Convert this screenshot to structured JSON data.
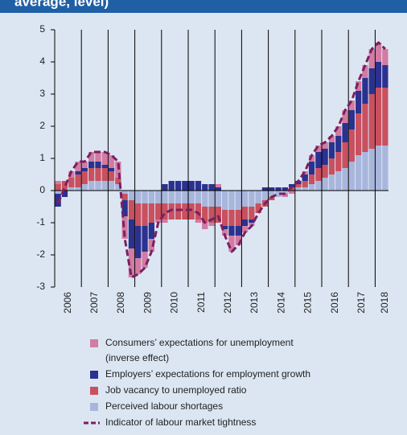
{
  "header": {
    "title": "average, level)"
  },
  "chart_data": {
    "type": "bar",
    "categories": [
      "2006",
      null,
      null,
      null,
      "2007",
      null,
      null,
      null,
      "2008",
      null,
      null,
      null,
      "2009",
      null,
      null,
      null,
      "2010",
      null,
      null,
      null,
      "2011",
      null,
      null,
      null,
      "2012",
      null,
      null,
      null,
      "2013",
      null,
      null,
      null,
      "2014",
      null,
      null,
      null,
      "2015",
      null,
      null,
      null,
      "2016",
      null,
      null,
      null,
      "2017",
      null,
      null,
      null,
      "2018",
      null
    ],
    "ylim": [
      -3,
      5
    ],
    "yticks": [
      -3,
      -2,
      -1,
      0,
      1,
      2,
      3,
      4,
      5
    ],
    "series": [
      {
        "name": "Perceived labour shortages",
        "color": "#a9b6dc",
        "values": [
          -0.1,
          0.0,
          0.1,
          0.1,
          0.2,
          0.3,
          0.3,
          0.3,
          0.3,
          0.2,
          -0.1,
          -0.3,
          -0.4,
          -0.4,
          -0.4,
          -0.4,
          -0.4,
          -0.4,
          -0.4,
          -0.4,
          -0.4,
          -0.4,
          -0.5,
          -0.5,
          -0.5,
          -0.6,
          -0.6,
          -0.6,
          -0.5,
          -0.5,
          -0.4,
          -0.3,
          -0.2,
          -0.2,
          -0.1,
          0.0,
          0.1,
          0.1,
          0.2,
          0.3,
          0.4,
          0.5,
          0.6,
          0.7,
          0.9,
          1.1,
          1.2,
          1.3,
          1.4,
          1.4
        ]
      },
      {
        "name": "Job vacancy to unemployed ratio",
        "color": "#c9505f",
        "values": [
          0.2,
          0.3,
          0.3,
          0.4,
          0.4,
          0.4,
          0.4,
          0.4,
          0.3,
          0.2,
          -0.2,
          -0.6,
          -0.7,
          -0.7,
          -0.6,
          -0.5,
          -0.5,
          -0.5,
          -0.5,
          -0.5,
          -0.5,
          -0.5,
          -0.5,
          -0.5,
          -0.5,
          -0.5,
          -0.5,
          -0.5,
          -0.4,
          -0.4,
          -0.3,
          -0.2,
          -0.1,
          0.0,
          0.0,
          0.1,
          0.1,
          0.2,
          0.3,
          0.4,
          0.4,
          0.5,
          0.6,
          0.8,
          1.0,
          1.3,
          1.5,
          1.7,
          1.8,
          1.8
        ]
      },
      {
        "name": "Employers’ expectations for employment growth",
        "color": "#2b318f",
        "values": [
          -0.4,
          -0.2,
          0.0,
          0.1,
          0.1,
          0.2,
          0.2,
          0.1,
          0.1,
          0.0,
          -0.5,
          -0.9,
          -1.0,
          -0.8,
          -0.5,
          0.0,
          0.2,
          0.3,
          0.3,
          0.3,
          0.3,
          0.3,
          0.2,
          0.2,
          0.1,
          -0.1,
          -0.3,
          -0.3,
          -0.2,
          -0.1,
          0.0,
          0.1,
          0.1,
          0.1,
          0.1,
          0.1,
          0.1,
          0.2,
          0.4,
          0.5,
          0.5,
          0.5,
          0.5,
          0.6,
          0.6,
          0.7,
          0.8,
          0.8,
          0.8,
          0.7
        ]
      },
      {
        "name": "Consumers’ expectations for unemployment (inverse effect)",
        "color": "#d27ba3",
        "values": [
          0.1,
          0.0,
          0.2,
          0.3,
          0.2,
          0.3,
          0.3,
          0.4,
          0.4,
          0.5,
          -0.7,
          -0.9,
          -0.5,
          -0.5,
          -0.4,
          -0.1,
          -0.1,
          0.0,
          0.0,
          0.0,
          0.0,
          -0.1,
          -0.2,
          -0.1,
          0.1,
          -0.2,
          -0.5,
          -0.3,
          -0.2,
          -0.1,
          0.0,
          0.0,
          0.0,
          0.0,
          -0.1,
          -0.1,
          0.0,
          0.1,
          0.2,
          0.2,
          0.2,
          0.2,
          0.3,
          0.4,
          0.3,
          0.3,
          0.4,
          0.6,
          0.6,
          0.5
        ]
      },
      {
        "name": "Indicator of labour market tightness",
        "type": "line",
        "color": "#7a1f62",
        "values": [
          -0.4,
          0.1,
          0.6,
          0.9,
          0.9,
          1.2,
          1.2,
          1.2,
          1.1,
          0.9,
          -1.5,
          -2.7,
          -2.6,
          -2.4,
          -1.9,
          -1.0,
          -0.7,
          -0.6,
          -0.6,
          -0.6,
          -0.6,
          -0.7,
          -1.0,
          -0.9,
          -0.8,
          -1.4,
          -1.9,
          -1.7,
          -1.3,
          -1.1,
          -0.7,
          -0.4,
          -0.2,
          -0.1,
          -0.1,
          0.1,
          0.3,
          0.6,
          1.1,
          1.4,
          1.5,
          1.7,
          2.0,
          2.5,
          2.8,
          3.4,
          3.9,
          4.4,
          4.6,
          4.4
        ]
      }
    ]
  }
}
